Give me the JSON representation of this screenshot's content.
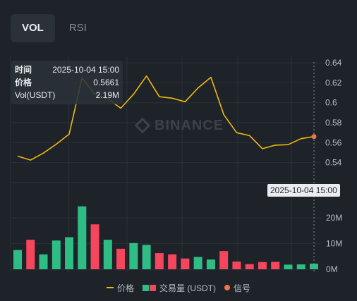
{
  "tabs": [
    {
      "label": "VOL",
      "active": true
    },
    {
      "label": "RSI",
      "active": false
    }
  ],
  "tooltip": {
    "time_label": "时间",
    "time_value": "2025-10-04 15:00",
    "price_label": "价格",
    "price_value": "0.5661",
    "vol_label": "Vol(USDT)",
    "vol_value": "2.19M"
  },
  "crosshair_label": "2025-10-04 15:00",
  "watermark": "BINANCE",
  "legend": {
    "price": "价格",
    "volume": "交易量 (USDT)",
    "signal": "信号"
  },
  "colors": {
    "price_line": "#f0b90b",
    "up": "#2ebd85",
    "down": "#f6465d",
    "signal": "#f0754a"
  },
  "chart_data": [
    {
      "type": "line",
      "title": "",
      "series": [
        {
          "name": "价格",
          "values": [
            0.5465,
            0.5425,
            0.5495,
            0.5585,
            0.5685,
            0.6248,
            0.6085,
            0.604,
            0.5945,
            0.6085,
            0.6268,
            0.606,
            0.6045,
            0.601,
            0.6148,
            0.6255,
            0.588,
            0.57,
            0.567,
            0.554,
            0.5575,
            0.558,
            0.564,
            0.5661
          ]
        }
      ],
      "yticks": [
        "0.54",
        "0.56",
        "0.58",
        "0.6",
        "0.62",
        "0.64"
      ],
      "ylim": [
        0.52,
        0.645
      ],
      "signal": {
        "index": 23,
        "value": 0.5661
      },
      "grid": true
    },
    {
      "type": "bar",
      "series": [
        {
          "name": "交易量 (USDT)",
          "values": [
            7.5,
            11.5,
            5.8,
            11.2,
            12.5,
            24.5,
            17.5,
            11.5,
            8.0,
            10.2,
            9.5,
            6.3,
            5.8,
            4.2,
            4.8,
            3.8,
            7.1,
            3.0,
            2.0,
            2.8,
            2.9,
            1.8,
            1.9,
            2.19
          ],
          "colors": [
            "up",
            "down",
            "up",
            "up",
            "up",
            "up",
            "down",
            "up",
            "down",
            "up",
            "up",
            "down",
            "down",
            "down",
            "up",
            "up",
            "down",
            "down",
            "down",
            "down",
            "down",
            "up",
            "up",
            "up"
          ]
        }
      ],
      "yticks": [
        "0M",
        "10M",
        "20M"
      ],
      "ylim": [
        0,
        28
      ],
      "unit": "M"
    }
  ]
}
